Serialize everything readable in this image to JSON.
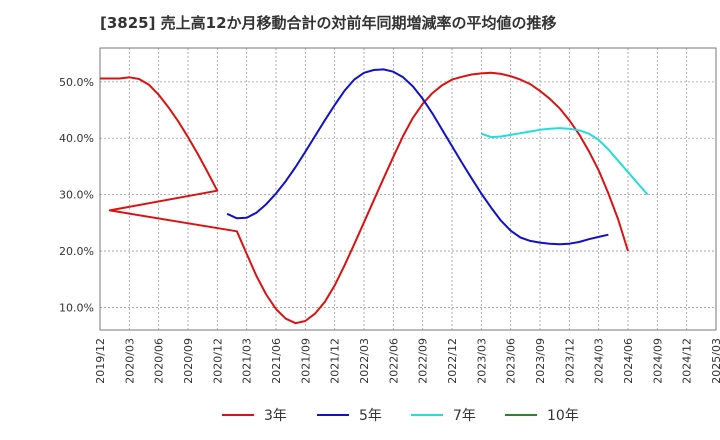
{
  "title": "[3825]  売上高12か月移動合計の対前年同期増減率の平均値の推移",
  "chart_data": {
    "type": "line",
    "title": "[3825]  売上高12か月移動合計の対前年同期増減率の平均値の推移",
    "xlabel": "",
    "ylabel": "",
    "x_ticks": [
      "2019/12",
      "2020/03",
      "2020/06",
      "2020/09",
      "2020/12",
      "2021/03",
      "2021/06",
      "2021/09",
      "2021/12",
      "2022/03",
      "2022/06",
      "2022/09",
      "2022/12",
      "2023/03",
      "2023/06",
      "2023/09",
      "2023/12",
      "2024/03",
      "2024/06",
      "2024/09",
      "2024/12",
      "2025/03"
    ],
    "x_range": [
      "2019/12",
      "2025/03"
    ],
    "y_ticks": [
      10,
      20,
      30,
      40,
      50
    ],
    "y_tick_labels": [
      "10.0%",
      "20.0%",
      "30.0%",
      "40.0%",
      "50.0%"
    ],
    "ylim": [
      6,
      56
    ],
    "grid": true,
    "legend_position": "bottom",
    "series": [
      {
        "name": "3年",
        "color": "#dd1111",
        "points": [
          [
            "2019/12",
            50.6
          ],
          [
            "2020/01",
            50.6
          ],
          [
            "2020/02",
            50.6
          ],
          [
            "2020/03",
            50.8
          ],
          [
            "2020/04",
            50.5
          ],
          [
            "2020/05",
            49.5
          ],
          [
            "2020/06",
            47.7
          ],
          [
            "2020/07",
            45.5
          ],
          [
            "2020/08",
            43.0
          ],
          [
            "2020/09",
            40.2
          ],
          [
            "2020/10",
            37.2
          ],
          [
            "2020/11",
            34.0
          ],
          [
            "2020/12",
            30.7
          ],
          [
            "2020/01",
            27.2
          ],
          [
            "2021/02",
            23.5
          ],
          [
            "2021/03",
            19.5
          ],
          [
            "2021/04",
            15.6
          ],
          [
            "2021/05",
            12.3
          ],
          [
            "2021/06",
            9.7
          ],
          [
            "2021/07",
            8.0
          ],
          [
            "2021/08",
            7.2
          ],
          [
            "2021/09",
            7.6
          ],
          [
            "2021/10",
            8.9
          ],
          [
            "2021/11",
            11.0
          ],
          [
            "2021/12",
            13.9
          ],
          [
            "2022/01",
            17.4
          ],
          [
            "2022/02",
            21.2
          ],
          [
            "2022/03",
            25.1
          ],
          [
            "2022/04",
            29.0
          ],
          [
            "2022/05",
            32.9
          ],
          [
            "2022/06",
            36.7
          ],
          [
            "2022/07",
            40.4
          ],
          [
            "2022/08",
            43.6
          ],
          [
            "2022/09",
            46.1
          ],
          [
            "2022/10",
            48.0
          ],
          [
            "2022/11",
            49.4
          ],
          [
            "2022/12",
            50.4
          ],
          [
            "2023/01",
            50.9
          ],
          [
            "2023/02",
            51.3
          ],
          [
            "2023/03",
            51.5
          ],
          [
            "2023/04",
            51.6
          ],
          [
            "2023/05",
            51.4
          ],
          [
            "2023/06",
            51.0
          ],
          [
            "2023/07",
            50.4
          ],
          [
            "2023/08",
            49.6
          ],
          [
            "2023/09",
            48.4
          ],
          [
            "2023/10",
            47.0
          ],
          [
            "2023/11",
            45.3
          ],
          [
            "2023/12",
            43.2
          ],
          [
            "2024/01",
            40.7
          ],
          [
            "2024/02",
            37.7
          ],
          [
            "2024/03",
            34.3
          ],
          [
            "2024/04",
            30.2
          ],
          [
            "2024/05",
            25.6
          ],
          [
            "2024/06",
            20.0
          ]
        ]
      },
      {
        "name": "5年",
        "color": "#1111cc",
        "points": [
          [
            "2021/01",
            26.6
          ],
          [
            "2021/02",
            25.8
          ],
          [
            "2021/03",
            25.9
          ],
          [
            "2021/04",
            26.8
          ],
          [
            "2021/05",
            28.3
          ],
          [
            "2021/06",
            30.2
          ],
          [
            "2021/07",
            32.4
          ],
          [
            "2021/08",
            34.9
          ],
          [
            "2021/09",
            37.6
          ],
          [
            "2021/10",
            40.4
          ],
          [
            "2021/11",
            43.2
          ],
          [
            "2021/12",
            45.9
          ],
          [
            "2022/01",
            48.4
          ],
          [
            "2022/02",
            50.4
          ],
          [
            "2022/03",
            51.6
          ],
          [
            "2022/04",
            52.1
          ],
          [
            "2022/05",
            52.2
          ],
          [
            "2022/06",
            51.8
          ],
          [
            "2022/07",
            50.8
          ],
          [
            "2022/08",
            49.2
          ],
          [
            "2022/09",
            47.0
          ],
          [
            "2022/10",
            44.4
          ],
          [
            "2022/11",
            41.5
          ],
          [
            "2022/12",
            38.6
          ],
          [
            "2023/01",
            35.7
          ],
          [
            "2023/02",
            32.9
          ],
          [
            "2023/03",
            30.2
          ],
          [
            "2023/04",
            27.7
          ],
          [
            "2023/05",
            25.4
          ],
          [
            "2023/06",
            23.6
          ],
          [
            "2023/07",
            22.4
          ],
          [
            "2023/08",
            21.8
          ],
          [
            "2023/09",
            21.5
          ],
          [
            "2023/10",
            21.3
          ],
          [
            "2023/11",
            21.2
          ],
          [
            "2023/12",
            21.3
          ],
          [
            "2024/01",
            21.6
          ],
          [
            "2024/02",
            22.1
          ],
          [
            "2024/03",
            22.5
          ],
          [
            "2024/04",
            22.9
          ]
        ]
      },
      {
        "name": "7年",
        "color": "#22dddd",
        "points": [
          [
            "2023/03",
            40.8
          ],
          [
            "2023/04",
            40.2
          ],
          [
            "2023/05",
            40.3
          ],
          [
            "2023/06",
            40.6
          ],
          [
            "2023/07",
            40.9
          ],
          [
            "2023/08",
            41.2
          ],
          [
            "2023/09",
            41.5
          ],
          [
            "2023/10",
            41.7
          ],
          [
            "2023/11",
            41.8
          ],
          [
            "2023/12",
            41.7
          ],
          [
            "2024/01",
            41.4
          ],
          [
            "2024/02",
            40.8
          ],
          [
            "2024/03",
            39.7
          ],
          [
            "2024/04",
            38.0
          ],
          [
            "2024/05",
            36.0
          ],
          [
            "2024/06",
            34.0
          ],
          [
            "2024/07",
            32.0
          ],
          [
            "2024/08",
            30.0
          ]
        ]
      },
      {
        "name": "10年",
        "color": "#228822",
        "points": []
      }
    ]
  }
}
